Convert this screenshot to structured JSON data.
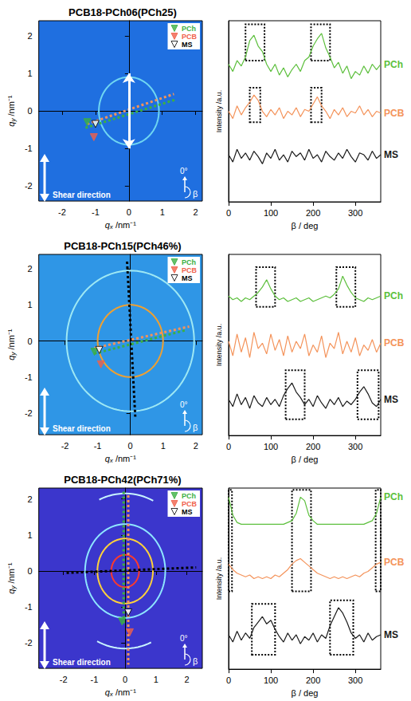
{
  "chart_data": [
    {
      "type": "scattering_pattern",
      "title": "PCB18-PCh06(PCh25)",
      "x_label": "qx /nm⁻¹",
      "y_label": "qy /nm⁻¹",
      "xlim": [
        -2.7,
        2.2
      ],
      "xticks": [
        -2,
        -1,
        0,
        1,
        2
      ],
      "ylim": [
        -2.4,
        2.4
      ],
      "yticks": [
        -2,
        -1,
        0,
        1,
        2
      ],
      "color": "#1f6fe0",
      "legend": "upper right",
      "series": [
        {
          "name": "PCh",
          "color": "#3cb043",
          "marker": "triangle-down",
          "x": [
            -1.25
          ],
          "y": [
            -0.3
          ]
        },
        {
          "name": "PCB",
          "color": "#f0604a",
          "marker": "triangle-down",
          "x": [
            -1.05
          ],
          "y": [
            -0.7
          ]
        },
        {
          "name": "MS",
          "color": "#000000",
          "marker": "triangle-down-open",
          "x": [
            -1.0
          ],
          "y": [
            -0.35
          ]
        }
      ],
      "rings": [
        {
          "r": 0.9,
          "color": "#6fd6f2"
        }
      ],
      "lines": [
        {
          "color": "#f4935a",
          "line_style": "dotted",
          "x": [
            -1.25,
            1.35
          ],
          "y": [
            -0.35,
            0.45
          ]
        },
        {
          "color": "#3cb043",
          "line_style": "dotted",
          "x": [
            -1.3,
            1.4
          ],
          "y": [
            -0.45,
            0.3
          ]
        }
      ],
      "double_arrow": {
        "color": "#ffffff",
        "x": [
          0,
          0
        ],
        "y": [
          -1,
          1
        ]
      },
      "annotations": [
        "Shear direction",
        "0°",
        "β"
      ]
    },
    {
      "type": "line",
      "x_label": "β / deg",
      "y_label": "Intensity /a.u.",
      "x": [
        0,
        10,
        20,
        30,
        40,
        50,
        60,
        70,
        80,
        90,
        100,
        110,
        120,
        130,
        140,
        150,
        160,
        170,
        180,
        190,
        200,
        210,
        220,
        230,
        240,
        250,
        260,
        270,
        280,
        290,
        300,
        310,
        320,
        330,
        340,
        350,
        360
      ],
      "xlim": [
        0,
        360
      ],
      "xticks": [
        0,
        100,
        200,
        300
      ],
      "ylim": [
        0,
        10
      ],
      "tick_labels": "x",
      "series": [
        {
          "name": "PCh",
          "color": "#5cbf3c",
          "values": [
            7.6,
            7.2,
            7.8,
            7.5,
            8.0,
            8.9,
            9.2,
            8.6,
            8.3,
            7.6,
            7.2,
            7.6,
            7.0,
            7.4,
            6.9,
            7.3,
            7.6,
            7.2,
            7.8,
            8.0,
            8.6,
            9.0,
            9.3,
            8.5,
            8.0,
            7.4,
            7.7,
            7.1,
            7.5,
            6.8,
            7.2,
            7.0,
            7.5,
            7.1,
            7.6,
            7.3,
            7.6
          ],
          "boxes": [
            [
              40,
              85,
              7.8,
              9.8
            ],
            [
              195,
              240,
              7.8,
              9.8
            ]
          ]
        },
        {
          "name": "PCB",
          "color": "#f4935a",
          "values": [
            5.0,
            4.6,
            5.3,
            4.8,
            5.2,
            5.5,
            5.9,
            5.6,
            5.0,
            4.7,
            5.1,
            4.8,
            5.2,
            4.6,
            5.0,
            4.8,
            5.2,
            4.7,
            5.1,
            5.0,
            5.4,
            5.8,
            5.3,
            5.0,
            4.6,
            5.1,
            4.8,
            5.2,
            4.7,
            5.0,
            4.9,
            5.3,
            4.8,
            5.1,
            4.7,
            5.0,
            4.9
          ],
          "boxes": [
            [
              50,
              75,
              4.4,
              6.3
            ],
            [
              195,
              220,
              4.4,
              6.3
            ]
          ]
        },
        {
          "name": "MS",
          "color": "#1a1a1a",
          "values": [
            2.6,
            2.2,
            2.9,
            2.4,
            2.7,
            2.3,
            2.8,
            2.5,
            2.1,
            2.7,
            2.4,
            2.9,
            2.3,
            2.6,
            2.2,
            2.8,
            2.5,
            2.7,
            2.3,
            2.9,
            2.4,
            2.6,
            2.2,
            2.8,
            2.5,
            2.3,
            2.7,
            2.4,
            2.9,
            2.5,
            2.2,
            2.7,
            2.6,
            2.3,
            2.8,
            2.4,
            2.6
          ],
          "boxes": []
        }
      ]
    },
    {
      "type": "scattering_pattern",
      "title": "PCB18-PCh15(PCh46%)",
      "x_label": "qx /nm⁻¹",
      "y_label": "qy /nm⁻¹",
      "xlim": [
        -2.8,
        2.2
      ],
      "xticks": [
        -2,
        -1,
        0,
        1,
        2
      ],
      "ylim": [
        -2.6,
        2.4
      ],
      "yticks": [
        -2,
        -1,
        0,
        1,
        2
      ],
      "color": "#2f96e6",
      "legend": "upper right",
      "series": [
        {
          "name": "PCh",
          "color": "#3cb043",
          "marker": "triangle-down",
          "x": [
            -1.1
          ],
          "y": [
            -0.3
          ]
        },
        {
          "name": "PCB",
          "color": "#f0604a",
          "marker": "triangle-down",
          "x": [
            -0.9
          ],
          "y": [
            -0.65
          ]
        },
        {
          "name": "MS",
          "color": "#000000",
          "marker": "triangle-down-open",
          "x": [
            -0.95
          ],
          "y": [
            -0.25
          ]
        }
      ],
      "rings": [
        {
          "r": 1.0,
          "color": "#f0a030"
        },
        {
          "r": 1.95,
          "color": "#9ee8f4"
        }
      ],
      "lines": [
        {
          "color": "#000000",
          "line_style": "dotted",
          "x": [
            -0.1,
            0.15
          ],
          "y": [
            2.2,
            -2.1
          ]
        },
        {
          "color": "#f4935a",
          "line_style": "dotted",
          "x": [
            -1.1,
            1.8
          ],
          "y": [
            -0.2,
            0.4
          ]
        },
        {
          "color": "#3cb043",
          "line_style": "dotted",
          "x": [
            -1.1,
            1.7
          ],
          "y": [
            -0.35,
            0.3
          ]
        }
      ],
      "annotations": [
        "Shear direction",
        "0°",
        "β"
      ]
    },
    {
      "type": "line",
      "x_label": "β / deg",
      "y_label": "Intensity /a.u.",
      "x": [
        0,
        10,
        20,
        30,
        40,
        50,
        60,
        70,
        80,
        90,
        100,
        110,
        120,
        130,
        140,
        150,
        160,
        170,
        180,
        190,
        200,
        210,
        220,
        230,
        240,
        250,
        260,
        270,
        280,
        290,
        300,
        310,
        320,
        330,
        340,
        350,
        360
      ],
      "xlim": [
        0,
        360
      ],
      "xticks": [
        0,
        100,
        200,
        300
      ],
      "ylim": [
        0,
        10
      ],
      "tick_labels": "x",
      "series": [
        {
          "name": "PCh",
          "color": "#5cbf3c",
          "values": [
            7.7,
            7.5,
            7.6,
            7.4,
            7.6,
            7.5,
            7.7,
            7.9,
            8.2,
            8.6,
            8.1,
            7.7,
            7.5,
            7.6,
            7.4,
            7.5,
            7.6,
            7.4,
            7.5,
            7.6,
            7.4,
            7.5,
            7.6,
            7.7,
            7.6,
            7.8,
            8.1,
            8.8,
            8.3,
            7.9,
            7.6,
            7.5,
            7.4,
            7.6,
            7.5,
            7.6,
            7.7
          ],
          "boxes": [
            [
              65,
              110,
              7.1,
              9.3
            ],
            [
              255,
              300,
              7.1,
              9.3
            ]
          ]
        },
        {
          "name": "PCB",
          "color": "#f4935a",
          "values": [
            5.2,
            4.4,
            5.6,
            4.6,
            5.4,
            4.3,
            5.7,
            4.8,
            5.1,
            4.5,
            5.6,
            4.7,
            5.3,
            4.4,
            5.5,
            4.6,
            5.2,
            4.8,
            5.6,
            4.4,
            5.0,
            4.6,
            5.5,
            4.3,
            5.1,
            4.8,
            5.7,
            4.5,
            5.2,
            4.6,
            5.4,
            4.4,
            5.0,
            4.7,
            5.3,
            4.6,
            5.1
          ],
          "boxes": []
        },
        {
          "name": "MS",
          "color": "#1a1a1a",
          "values": [
            2.0,
            1.6,
            2.3,
            1.7,
            2.1,
            1.5,
            2.2,
            1.8,
            1.6,
            2.1,
            1.7,
            2.0,
            1.6,
            2.2,
            2.6,
            2.9,
            2.4,
            2.1,
            1.7,
            2.0,
            1.6,
            2.2,
            1.8,
            1.5,
            2.0,
            1.7,
            2.1,
            1.6,
            1.9,
            1.7,
            2.0,
            2.4,
            2.7,
            2.3,
            1.8,
            1.6,
            2.0
          ],
          "boxes": [
            [
              135,
              180,
              0.9,
              3.6
            ],
            [
              305,
              355,
              0.9,
              3.6
            ]
          ]
        }
      ]
    },
    {
      "type": "scattering_pattern",
      "title": "PCB18-PCh42(PCh71%)",
      "x_label": "qx /nm⁻¹",
      "y_label": "qy /nm⁻¹",
      "xlim": [
        -2.8,
        2.5
      ],
      "xticks": [
        -2,
        -1,
        0,
        1,
        2
      ],
      "ylim": [
        -2.7,
        2.3
      ],
      "yticks": [
        -2,
        -1,
        0,
        1,
        2
      ],
      "color": "#3b36cc",
      "legend": "upper right",
      "series": [
        {
          "name": "PCh",
          "color": "#3cb043",
          "marker": "triangle-down",
          "x": [
            -0.1
          ],
          "y": [
            -1.4
          ]
        },
        {
          "name": "PCB",
          "color": "#f0604a",
          "marker": "triangle-down",
          "x": [
            0.15
          ],
          "y": [
            -1.7
          ]
        },
        {
          "name": "MS",
          "color": "#000000",
          "marker": "triangle-down-open",
          "x": [
            0.1
          ],
          "y": [
            -1.15
          ]
        }
      ],
      "rings": [
        {
          "r": 0.45,
          "color": "#ff3a2a"
        },
        {
          "r": 0.9,
          "color": "#ffd23a"
        },
        {
          "r": 1.3,
          "color": "#8ee6ff"
        },
        {
          "r": 2.15,
          "color": "#c8f4ff",
          "arcs": [
            [
              65,
              115
            ],
            [
              245,
              295
            ]
          ]
        }
      ],
      "lines": [
        {
          "color": "#000000",
          "line_style": "dotted",
          "x": [
            -1.9,
            2.3
          ],
          "y": [
            -0.05,
            0.1
          ]
        },
        {
          "color": "#3cb043",
          "line_style": "dotted",
          "x": [
            -0.05,
            -0.05
          ],
          "y": [
            2.2,
            -1.5
          ]
        },
        {
          "color": "#f4935a",
          "line_style": "dotted",
          "x": [
            0.1,
            0.1
          ],
          "y": [
            2.1,
            -2.6
          ]
        }
      ],
      "annotations": [
        "Shear direction",
        "0°",
        "β"
      ]
    },
    {
      "type": "line",
      "x_label": "β / deg",
      "y_label": "Intensity /a.u.",
      "x": [
        0,
        10,
        20,
        30,
        40,
        50,
        60,
        70,
        80,
        90,
        100,
        110,
        120,
        130,
        140,
        150,
        160,
        170,
        180,
        190,
        200,
        210,
        220,
        230,
        240,
        250,
        260,
        270,
        280,
        290,
        300,
        310,
        320,
        330,
        340,
        350,
        360
      ],
      "xlim": [
        0,
        360
      ],
      "xticks": [
        0,
        100,
        200,
        300
      ],
      "ylim": [
        0,
        10
      ],
      "tick_labels": "x",
      "series": [
        {
          "name": "PCh",
          "color": "#5cbf3c",
          "values": [
            9.5,
            8.5,
            8.1,
            8.0,
            8.0,
            8.0,
            8.0,
            8.0,
            8.0,
            8.0,
            8.0,
            8.0,
            8.0,
            8.0,
            8.1,
            8.2,
            8.6,
            9.5,
            9.3,
            8.5,
            8.2,
            8.0,
            8.0,
            8.0,
            8.0,
            8.0,
            8.0,
            8.0,
            8.0,
            8.0,
            8.0,
            8.0,
            8.0,
            8.1,
            8.2,
            8.6,
            9.5
          ],
          "boxes": [
            [
              0,
              8,
              4.3,
              9.9
            ],
            [
              150,
              195,
              4.3,
              9.9
            ],
            [
              348,
              360,
              4.3,
              9.9
            ]
          ]
        },
        {
          "name": "PCB",
          "color": "#f4935a",
          "values": [
            5.8,
            5.5,
            5.3,
            5.2,
            5.1,
            5.2,
            5.0,
            5.1,
            5.0,
            5.1,
            5.0,
            5.2,
            5.1,
            5.3,
            5.5,
            5.8,
            6.0,
            6.1,
            5.9,
            5.7,
            5.5,
            5.3,
            5.2,
            5.1,
            5.0,
            5.1,
            5.0,
            5.1,
            5.0,
            5.1,
            5.2,
            5.1,
            5.3,
            5.4,
            5.6,
            5.8,
            5.9
          ],
          "boxes": []
        },
        {
          "name": "MS",
          "color": "#1a1a1a",
          "values": [
            1.9,
            1.5,
            2.1,
            1.6,
            2.0,
            1.7,
            2.3,
            2.6,
            2.9,
            2.5,
            2.7,
            2.2,
            1.8,
            1.5,
            2.0,
            1.6,
            1.9,
            1.4,
            1.8,
            1.6,
            2.0,
            1.5,
            1.9,
            1.7,
            2.4,
            2.9,
            3.4,
            3.1,
            2.6,
            2.0,
            1.7,
            1.9,
            1.5,
            2.0,
            1.6,
            1.8,
            1.9
          ],
          "boxes": [
            [
              55,
              110,
              0.8,
              3.6
            ],
            [
              240,
              295,
              0.8,
              3.8
            ]
          ]
        }
      ]
    }
  ]
}
